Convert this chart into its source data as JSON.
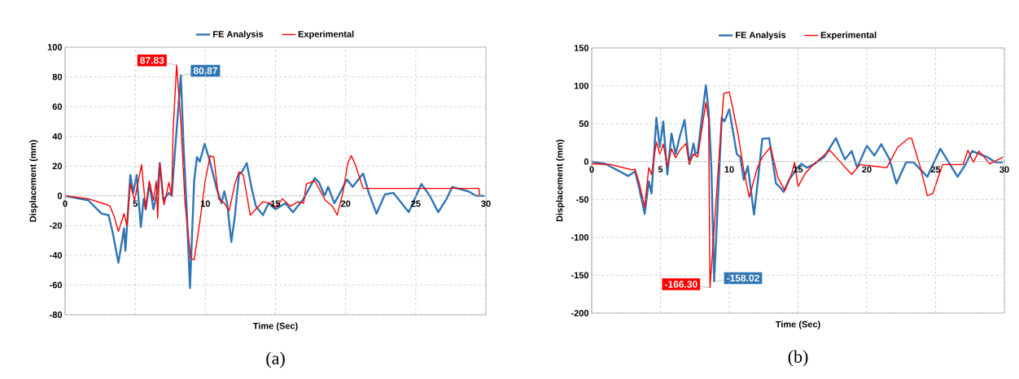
{
  "chart_data": [
    {
      "type": "line",
      "xlabel": "Time (Sec)",
      "ylabel": "Displacement (mm)",
      "xlim": [
        0,
        30
      ],
      "ylim": [
        -80,
        100
      ],
      "xticks": [
        0,
        5,
        10,
        15,
        20,
        25,
        30
      ],
      "yticks": [
        -80,
        -60,
        -40,
        -20,
        0,
        20,
        40,
        60,
        80,
        100
      ],
      "grid": true,
      "legend": "top",
      "series": [
        {
          "name": "FE Analysis",
          "color": "#2e75b6",
          "x": [
            0,
            1.65,
            2.6,
            3.1,
            3.4,
            3.8,
            4.2,
            4.3,
            4.65,
            4.85,
            5.1,
            5.4,
            5.6,
            5.75,
            6.0,
            6.3,
            6.6,
            6.75,
            7.0,
            7.4,
            7.6,
            7.85,
            8.25,
            8.45,
            8.65,
            8.9,
            9.2,
            9.4,
            9.6,
            9.95,
            10.3,
            10.8,
            11.15,
            11.35,
            11.55,
            11.85,
            12.1,
            12.4,
            12.6,
            12.95,
            13.3,
            13.6,
            14.1,
            14.5,
            15,
            15.7,
            16.25,
            17,
            17.8,
            18.1,
            18.5,
            18.75,
            19.2,
            19.6,
            20.1,
            20.5,
            21.25,
            21.65,
            22.2,
            22.8,
            23.4,
            24.5,
            25.4,
            26,
            26.6,
            27.2,
            27.6,
            28.75,
            29.3,
            29.9
          ],
          "values": [
            0,
            -3,
            -12,
            -13,
            -25,
            -45,
            -22,
            -37,
            14,
            2,
            14,
            -21,
            -2,
            -9,
            8,
            -9,
            4,
            22,
            -3,
            2,
            0,
            32,
            81,
            32,
            -5,
            -62,
            10,
            26,
            23,
            35,
            24,
            5,
            -5,
            3,
            -5,
            -31,
            -14,
            15,
            16,
            22,
            5,
            -7,
            -13,
            -5,
            -9,
            -5,
            -11,
            -2,
            12,
            9,
            0,
            6,
            -5,
            2,
            11,
            6,
            15,
            2,
            -12,
            1,
            2,
            -11,
            8,
            0,
            -11,
            -2,
            6,
            3,
            0,
            0
          ]
        },
        {
          "name": "Experimental",
          "color": "#ff0000",
          "x": [
            0,
            1.65,
            3.0,
            3.2,
            3.5,
            3.8,
            4.2,
            4.4,
            4.65,
            4.95,
            5.45,
            5.75,
            6.0,
            6.3,
            6.5,
            6.6,
            6.75,
            7.05,
            7.4,
            7.6,
            7.7,
            7.95,
            8.25,
            8.55,
            8.95,
            9.2,
            9.6,
            10.0,
            10.35,
            10.6,
            10.95,
            11.35,
            11.7,
            12.1,
            12.4,
            12.7,
            13.2,
            13.6,
            14.1,
            14.65,
            15,
            15.5,
            16.05,
            16.6,
            17,
            17.2,
            17.8,
            18.55,
            19.05,
            19.4,
            19.8,
            20.15,
            20.4,
            20.65,
            21.25,
            22.2,
            29.5,
            29.55
          ],
          "values": [
            0,
            -2,
            -6,
            -7,
            -14,
            -24,
            -12,
            -20,
            8,
            -3,
            21,
            -9,
            10,
            -3,
            10,
            -15,
            22,
            -6,
            9,
            0,
            44,
            88,
            50,
            -5,
            -42,
            -43,
            -18,
            11,
            27,
            26,
            -2,
            -5,
            -10,
            8,
            16,
            14,
            -13,
            -9,
            -4,
            -5,
            -8,
            -2,
            -7,
            -4,
            -5,
            8,
            10,
            -3,
            -7,
            -13,
            2,
            22,
            27,
            22,
            5,
            5,
            5,
            0
          ]
        }
      ],
      "annotations": [
        {
          "text": "80.87",
          "x": 8.25,
          "y": 80.87
        },
        {
          "text": "87.83",
          "x": 7.95,
          "y": 87.83
        },
        "(a)"
      ]
    },
    {
      "type": "line",
      "xlabel": "Time (Sec)",
      "ylabel": "Displacement (mm)",
      "xlim": [
        0,
        30
      ],
      "ylim": [
        -200,
        150
      ],
      "xticks": [
        0,
        5,
        10,
        15,
        20,
        25,
        30
      ],
      "yticks": [
        -200,
        -150,
        -100,
        -50,
        0,
        50,
        100,
        150
      ],
      "grid": true,
      "legend": "top",
      "series": [
        {
          "name": "FE Analysis",
          "color": "#2e75b6",
          "x": [
            0,
            1,
            2.65,
            3.15,
            3.45,
            3.85,
            4.15,
            4.35,
            4.7,
            4.95,
            5.2,
            5.5,
            5.8,
            6.1,
            6.4,
            6.75,
            7.1,
            7.4,
            7.55,
            7.7,
            8.3,
            8.5,
            8.7,
            8.9,
            9.15,
            9.45,
            9.65,
            10.0,
            10.25,
            10.55,
            10.8,
            11.05,
            11.35,
            11.8,
            12.1,
            12.4,
            12.9,
            13.4,
            13.8,
            13.95,
            14.35,
            14.95,
            15.25,
            15.65,
            16.1,
            16.9,
            17.75,
            18.4,
            18.9,
            19.3,
            20,
            20.55,
            21.05,
            21.65,
            22.15,
            22.85,
            23.4,
            24.4,
            25.35,
            26.6,
            27.2,
            27.65,
            28.75,
            29.35,
            29.9
          ],
          "values": [
            0,
            -3,
            -19,
            -13,
            -35,
            -69,
            -26,
            -42,
            58,
            19,
            53,
            -17,
            37,
            10,
            33,
            55,
            -3,
            24,
            10,
            12,
            101,
            67,
            -8,
            -158,
            -61,
            58,
            53,
            69,
            42,
            10,
            6,
            -24,
            -6,
            -70,
            -22,
            30,
            31,
            -29,
            -36,
            -40,
            -24,
            -8,
            -3,
            -8,
            -4,
            6,
            31,
            3,
            14,
            -8,
            21,
            8,
            23,
            3,
            -29,
            -1,
            -1,
            -20,
            17,
            -20,
            -3,
            14,
            6,
            -1,
            -1
          ]
        },
        {
          "name": "Experimental",
          "color": "#ff0000",
          "x": [
            0,
            1.4,
            2.95,
            3.15,
            3.45,
            3.85,
            4.15,
            4.35,
            4.7,
            4.95,
            5.2,
            5.5,
            5.8,
            6.1,
            6.4,
            6.85,
            7.1,
            7.4,
            7.7,
            8.3,
            8.5,
            8.6,
            8.9,
            9.3,
            9.6,
            10.0,
            10.25,
            10.65,
            11.05,
            11.45,
            12.05,
            12.4,
            13.0,
            13.55,
            14.05,
            14.55,
            14.75,
            15,
            15.55,
            16.1,
            17.3,
            17.9,
            18.9,
            19.5,
            20.45,
            21.45,
            22.25,
            23.05,
            23.25,
            23.9,
            24.4,
            24.8,
            25.5,
            27,
            27.35,
            27.75,
            28.15,
            28.95,
            29.9
          ],
          "values": [
            -3,
            -4,
            -11,
            -10,
            -28,
            -60,
            -8,
            -17,
            26,
            10,
            23,
            -6,
            17,
            5,
            15,
            24,
            -3,
            10,
            6,
            78,
            56,
            -166,
            -90,
            17,
            90,
            92,
            71,
            35,
            -11,
            -47,
            -8,
            6,
            19,
            -22,
            -38,
            -15,
            -1,
            -33,
            -15,
            -4,
            15,
            3,
            -17,
            -4,
            -6,
            -8,
            19,
            31,
            31,
            -8,
            -45,
            -42,
            -4,
            -4,
            15,
            -1,
            14,
            -3,
            6
          ]
        }
      ],
      "annotations": [
        {
          "text": "-158.02",
          "x": 8.9,
          "y": -158.02
        },
        {
          "text": "-166.30",
          "x": 8.6,
          "y": -166.3
        },
        "(b)"
      ]
    }
  ]
}
